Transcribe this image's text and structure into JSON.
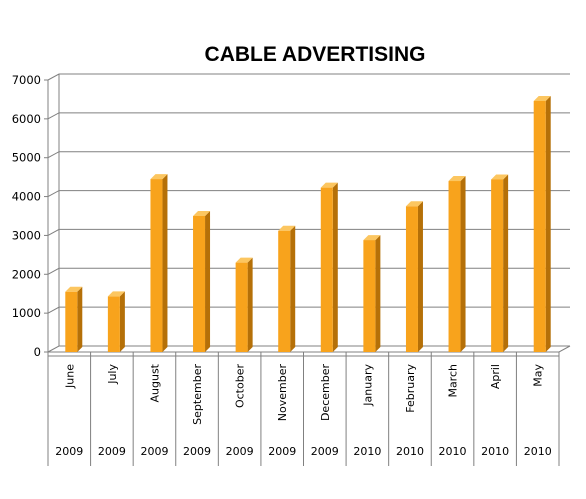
{
  "chart_data": {
    "type": "bar",
    "title": "CABLE ADVERTISING",
    "xlabel": "",
    "ylabel": "",
    "ylim": [
      0,
      7000
    ],
    "yticks": [
      0,
      1000,
      2000,
      3000,
      4000,
      5000,
      6000,
      7000
    ],
    "grid": true,
    "legend": "none",
    "categories": [
      "June",
      "July",
      "August",
      "September",
      "October",
      "November",
      "December",
      "January",
      "February",
      "March",
      "April",
      "May"
    ],
    "years": [
      "2009",
      "2009",
      "2009",
      "2009",
      "2009",
      "2009",
      "2009",
      "2010",
      "2010",
      "2010",
      "2010",
      "2010"
    ],
    "values": [
      1550,
      1430,
      4450,
      3500,
      2300,
      3120,
      4230,
      2880,
      3750,
      4400,
      4440,
      6460
    ],
    "colors": {
      "bar_front": "#f8a31c",
      "bar_side": "#b57008",
      "bar_top": "#fcc660",
      "grid": "#808080",
      "axis": "#808080"
    }
  }
}
